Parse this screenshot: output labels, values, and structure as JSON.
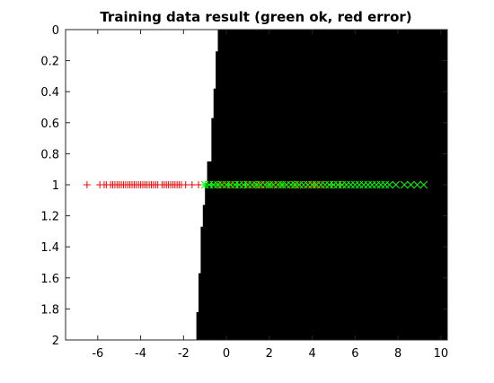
{
  "chart_data": {
    "type": "scatter",
    "title": "Training data result (green ok, red error)",
    "xlabel": "",
    "ylabel": "",
    "xlim": [
      -7.5,
      10.3
    ],
    "ylim": [
      0,
      2
    ],
    "y_reversed": true,
    "x_ticks": [
      "-6",
      "-4",
      "-2",
      "0",
      "2",
      "4",
      "6",
      "8",
      "10"
    ],
    "y_ticks": [
      "0",
      "0.2",
      "0.4",
      "0.6",
      "0.8",
      "1",
      "1.2",
      "1.4",
      "1.6",
      "1.8",
      "2"
    ],
    "grid": false,
    "colors": {
      "ok": "#00ff00",
      "error": "#ff0000",
      "region_negative": "#ffffff",
      "region_positive": "#000000"
    },
    "decision_boundary": [
      {
        "y": 0.0,
        "x": -0.4
      },
      {
        "y": 0.14,
        "x": -0.5
      },
      {
        "y": 0.38,
        "x": -0.6
      },
      {
        "y": 0.57,
        "x": -0.7
      },
      {
        "y": 0.85,
        "x": -0.9
      },
      {
        "y": 0.99,
        "x": -1.0
      },
      {
        "y": 1.13,
        "x": -1.1
      },
      {
        "y": 1.27,
        "x": -1.2
      },
      {
        "y": 1.57,
        "x": -1.3
      },
      {
        "y": 1.82,
        "x": -1.4
      },
      {
        "y": 2.0,
        "x": -1.5
      }
    ],
    "series": [
      {
        "marker": "plus",
        "color": "#ff0000",
        "x": [
          -6.5,
          -5.9,
          -5.7,
          -5.6,
          -5.4,
          -5.3,
          -5.2,
          -5.1,
          -5.0,
          -4.9,
          -4.8,
          -4.7,
          -4.6,
          -4.5,
          -4.4,
          -4.3,
          -4.2,
          -4.1,
          -4.0,
          -3.9,
          -3.8,
          -3.7,
          -3.6,
          -3.5,
          -3.4,
          -3.3,
          -3.2,
          -3.0,
          -2.9,
          -2.8,
          -2.7,
          -2.6,
          -2.5,
          -2.4,
          -2.3,
          -2.2,
          -2.1,
          -1.9,
          -1.6,
          -1.3
        ],
        "y": [
          1,
          1,
          1,
          1,
          1,
          1,
          1,
          1,
          1,
          1,
          1,
          1,
          1,
          1,
          1,
          1,
          1,
          1,
          1,
          1,
          1,
          1,
          1,
          1,
          1,
          1,
          1,
          1,
          1,
          1,
          1,
          1,
          1,
          1,
          1,
          1,
          1,
          1,
          1,
          1
        ]
      },
      {
        "marker": "plus",
        "color": "#00ff00",
        "x": [
          -1.0,
          -0.7,
          -0.4,
          0.1,
          0.5,
          0.9,
          1.4,
          2.0,
          2.6,
          3.2,
          4.1,
          4.9,
          5.3
        ],
        "y": [
          1,
          1,
          1,
          1,
          1,
          1,
          1,
          1,
          1,
          1,
          1,
          1,
          1
        ]
      },
      {
        "marker": "circle",
        "color": "#ff0000",
        "x": [
          -0.3,
          0.1,
          0.4,
          0.8,
          1.1,
          1.5,
          1.7,
          2.0,
          2.3,
          2.6,
          3.0,
          3.3,
          3.6,
          3.9,
          4.1,
          4.3,
          4.6,
          5.0,
          5.4
        ],
        "y": [
          1,
          1,
          1,
          1,
          1,
          1,
          1,
          1,
          1,
          1,
          1,
          1,
          1,
          1,
          1,
          1,
          1,
          1,
          1
        ]
      },
      {
        "marker": "x",
        "color": "#00ff00",
        "x": [
          -1.0,
          -0.8,
          -0.6,
          -0.4,
          -0.2,
          0.0,
          0.2,
          0.4,
          0.6,
          0.8,
          1.0,
          1.2,
          1.4,
          1.6,
          1.8,
          2.0,
          2.2,
          2.4,
          2.6,
          2.8,
          3.0,
          3.2,
          3.4,
          3.6,
          3.8,
          4.0,
          4.2,
          4.4,
          4.6,
          4.8,
          5.0,
          5.2,
          5.4,
          5.6,
          5.8,
          6.0,
          6.2,
          6.4,
          6.6,
          6.8,
          7.0,
          7.2,
          7.4,
          7.6,
          7.9,
          8.3,
          8.6,
          8.9,
          9.2
        ],
        "y": [
          1,
          1,
          1,
          1,
          1,
          1,
          1,
          1,
          1,
          1,
          1,
          1,
          1,
          1,
          1,
          1,
          1,
          1,
          1,
          1,
          1,
          1,
          1,
          1,
          1,
          1,
          1,
          1,
          1,
          1,
          1,
          1,
          1,
          1,
          1,
          1,
          1,
          1,
          1,
          1,
          1,
          1,
          1,
          1,
          1,
          1,
          1,
          1,
          1
        ]
      }
    ]
  }
}
